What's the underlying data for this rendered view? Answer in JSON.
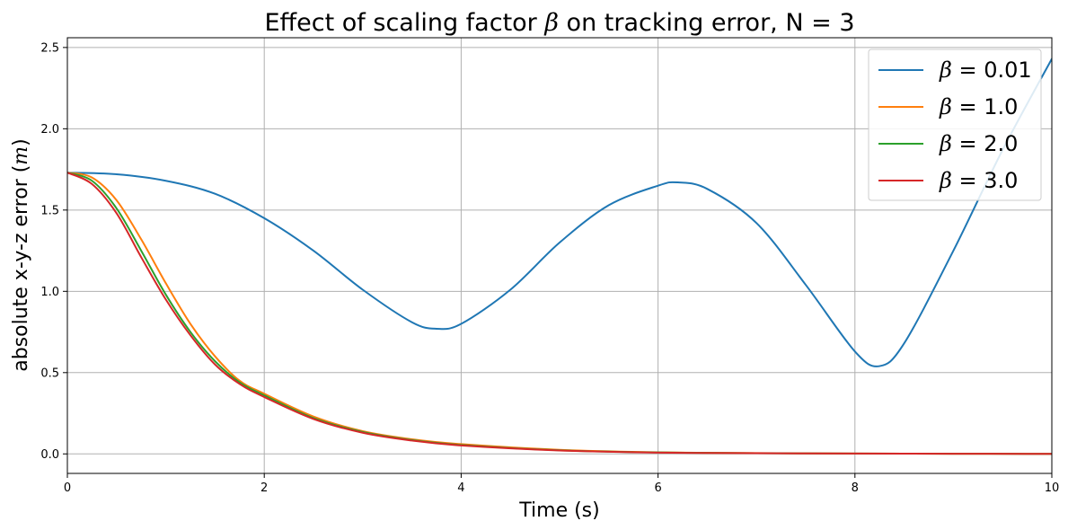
{
  "chart_data": {
    "type": "line",
    "title_prefix": "Effect of scaling factor ",
    "title_symbol": "β",
    "title_suffix": " on tracking error, N = 3",
    "xlabel": "Time (s)",
    "ylabel_prefix": "absolute x-y-z error (",
    "ylabel_unit": "m",
    "ylabel_suffix": ")",
    "xlim": [
      0,
      10
    ],
    "ylim": [
      -0.12,
      2.56
    ],
    "xticks": [
      0,
      2,
      4,
      6,
      8,
      10
    ],
    "xtick_labels": [
      "0",
      "2",
      "4",
      "6",
      "8",
      "10"
    ],
    "yticks": [
      0.0,
      0.5,
      1.0,
      1.5,
      2.0,
      2.5
    ],
    "ytick_labels": [
      "0.0",
      "0.5",
      "1.0",
      "1.5",
      "2.0",
      "2.5"
    ],
    "grid": true,
    "legend_position": "top-right",
    "series": [
      {
        "symbol": "β",
        "value_text": " = 0.01",
        "color": "#1f77b4",
        "x": [
          0,
          0.5,
          1,
          1.5,
          2,
          2.5,
          3,
          3.5,
          3.75,
          4,
          4.5,
          5,
          5.5,
          6,
          6.2,
          6.5,
          7,
          7.5,
          8,
          8.25,
          8.5,
          9,
          9.5,
          10
        ],
        "y": [
          1.73,
          1.72,
          1.68,
          1.6,
          1.45,
          1.25,
          1.01,
          0.81,
          0.77,
          0.8,
          1.01,
          1.3,
          1.53,
          1.65,
          1.67,
          1.63,
          1.42,
          1.04,
          0.63,
          0.54,
          0.68,
          1.25,
          1.87,
          2.43
        ]
      },
      {
        "symbol": "β",
        "value_text": " = 1.0",
        "color": "#ff7f0e",
        "x": [
          0,
          0.25,
          0.5,
          0.75,
          1,
          1.25,
          1.5,
          1.75,
          2,
          2.5,
          3,
          3.5,
          4,
          5,
          6,
          7,
          8,
          9,
          10
        ],
        "y": [
          1.73,
          1.7,
          1.56,
          1.32,
          1.05,
          0.8,
          0.6,
          0.45,
          0.37,
          0.23,
          0.14,
          0.09,
          0.06,
          0.025,
          0.01,
          0.005,
          0.002,
          0.001,
          0.0
        ]
      },
      {
        "symbol": "β",
        "value_text": " = 2.0",
        "color": "#2ca02c",
        "x": [
          0,
          0.25,
          0.5,
          0.75,
          1,
          1.25,
          1.5,
          1.75,
          2,
          2.5,
          3,
          3.5,
          4,
          5,
          6,
          7,
          8,
          9,
          10
        ],
        "y": [
          1.73,
          1.68,
          1.51,
          1.25,
          0.98,
          0.75,
          0.57,
          0.44,
          0.36,
          0.22,
          0.135,
          0.085,
          0.055,
          0.022,
          0.009,
          0.004,
          0.002,
          0.001,
          0.0
        ]
      },
      {
        "symbol": "β",
        "value_text": " = 3.0",
        "color": "#d62728",
        "x": [
          0,
          0.25,
          0.5,
          0.75,
          1,
          1.25,
          1.5,
          1.75,
          2,
          2.5,
          3,
          3.5,
          4,
          5,
          6,
          7,
          8,
          9,
          10
        ],
        "y": [
          1.73,
          1.66,
          1.48,
          1.21,
          0.95,
          0.73,
          0.55,
          0.43,
          0.35,
          0.215,
          0.13,
          0.082,
          0.052,
          0.021,
          0.008,
          0.004,
          0.002,
          0.001,
          0.0
        ]
      }
    ]
  }
}
